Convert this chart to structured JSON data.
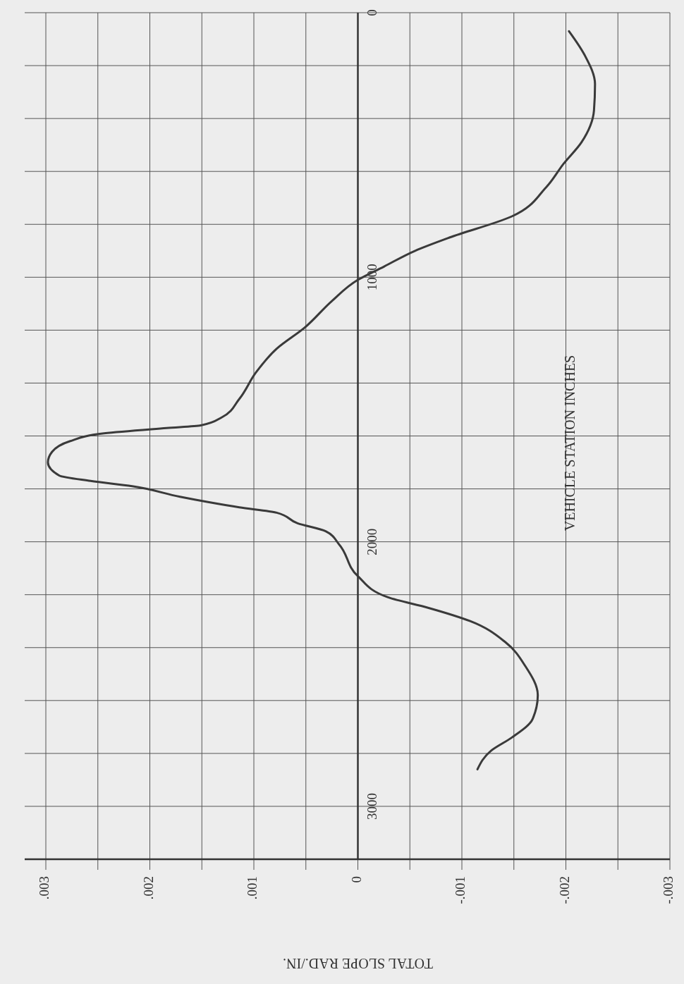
{
  "chart_data": {
    "type": "line",
    "xlabel": "TOTAL SLOPE RAD./IN.",
    "ylabel": "VEHICLE STATION INCHES",
    "x": [
      -0.00203,
      -0.00218,
      -0.00228,
      -0.00227,
      -0.00215,
      -0.00198,
      -0.00181,
      -0.00148,
      -0.00088,
      -0.00055,
      -0.00025,
      0,
      0.00025,
      0.00051,
      0.00078,
      0.00098,
      0.00114,
      0.00131,
      0.00151,
      0.00184,
      0.00244,
      0.00277,
      0.00294,
      0.00298,
      0.00287,
      0.00257,
      0.00217,
      0.00171,
      0.00144,
      0.00114,
      0.00078,
      0.00058,
      0.00031,
      0.00018,
      0,
      -0.00029,
      -0.00068,
      -0.00108,
      -0.00142,
      -0.00161,
      -0.00173,
      -0.00168,
      -0.00148,
      -0.00128,
      -0.00115
    ],
    "series": [
      {
        "color": "#3a3a3a",
        "values": [
          70,
          160,
          270,
          370,
          490,
          570,
          660,
          770,
          850,
          900,
          960,
          1010,
          1090,
          1190,
          1270,
          1360,
          1460,
          1530,
          1560,
          1570,
          1590,
          1620,
          1660,
          1700,
          1750,
          1770,
          1790,
          1830,
          1850,
          1870,
          1890,
          1930,
          1960,
          2010,
          2130,
          2210,
          2250,
          2300,
          2380,
          2470,
          2580,
          2670,
          2740,
          2790,
          2860
        ]
      }
    ],
    "ylim": [
      3200,
      0
    ],
    "yticks": [
      {
        "value": 3200,
        "label": null
      },
      3000,
      {
        "value": 2800,
        "label": null
      },
      {
        "value": 2600,
        "label": null
      },
      {
        "value": 2400,
        "label": null
      },
      {
        "value": 2200,
        "label": null
      },
      2000,
      {
        "value": 1800,
        "label": null
      },
      {
        "value": 1600,
        "label": null
      },
      {
        "value": 1400,
        "label": null
      },
      {
        "value": 1200,
        "label": null
      },
      1000,
      {
        "value": 800,
        "label": null
      },
      {
        "value": 600,
        "label": null
      },
      {
        "value": 400,
        "label": null
      },
      {
        "value": 200,
        "label": null
      },
      0
    ],
    "xlim": [
      0.003,
      -0.003
    ],
    "xticks": [
      {
        "value": -0.003,
        "label": "-.003"
      },
      {
        "value": -0.0025,
        "label": null
      },
      {
        "value": -0.002,
        "label": "-.002"
      },
      {
        "value": -0.0015,
        "label": null
      },
      {
        "value": -0.001,
        "label": "-.001"
      },
      {
        "value": -0.0005,
        "label": null
      },
      0,
      {
        "value": 0.0005,
        "label": null
      },
      {
        "value": 0.001,
        "label": ".001"
      },
      {
        "value": 0.0015,
        "label": null
      },
      {
        "value": 0.002,
        "label": ".002"
      },
      {
        "value": 0.0025,
        "label": null
      },
      {
        "value": 0.003,
        "label": ".003"
      }
    ],
    "grid": true,
    "marker": "none",
    "line_style": "solid"
  }
}
